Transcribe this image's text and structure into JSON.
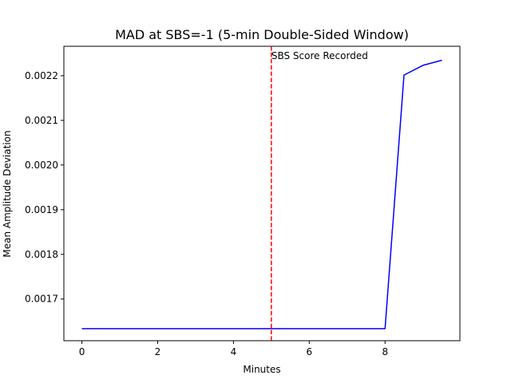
{
  "chart_data": {
    "type": "line",
    "title": "MAD at SBS=-1 (5-min Double-Sided Window)",
    "xlabel": "Minutes",
    "ylabel": "Mean Amplitude Deviation",
    "xlim": [
      -0.475,
      9.975
    ],
    "ylim": [
      0.0016066,
      0.0022659
    ],
    "x_ticks": [
      0,
      2,
      4,
      6,
      8
    ],
    "y_ticks": [
      0.0017,
      0.0018,
      0.0019,
      0.002,
      0.0021,
      0.0022
    ],
    "y_tick_labels": [
      "0.0017",
      "0.0018",
      "0.0019",
      "0.0020",
      "0.0021",
      "0.0022"
    ],
    "grid": false,
    "series": [
      {
        "color": "#0000ff",
        "x": [
          0,
          0.5,
          1,
          1.5,
          2,
          2.5,
          3,
          3.5,
          4,
          4.5,
          5,
          5.5,
          6,
          6.5,
          7,
          7.5,
          8,
          8.5,
          9,
          9.5
        ],
        "y": [
          0.0016336,
          0.0016336,
          0.0016336,
          0.0016336,
          0.0016336,
          0.0016336,
          0.0016336,
          0.0016336,
          0.0016336,
          0.0016336,
          0.0016336,
          0.0016336,
          0.0016336,
          0.0016336,
          0.0016336,
          0.0016336,
          0.0016336,
          0.0022014,
          0.0022232,
          0.0022346
        ]
      }
    ],
    "annotations": [
      {
        "type": "vline",
        "x": 5,
        "color": "#ff0000",
        "style": "dashed",
        "text": "SBS Score Recorded"
      }
    ]
  }
}
